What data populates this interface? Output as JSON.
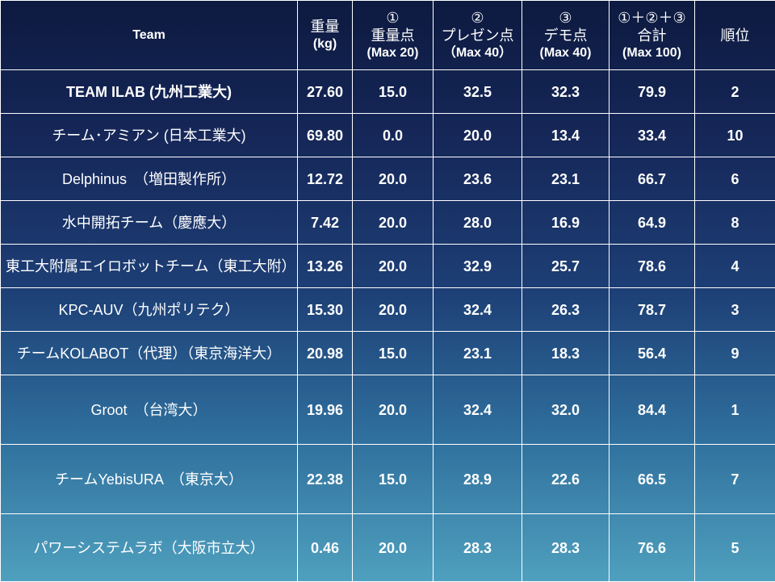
{
  "header": {
    "team": "Team",
    "weight": {
      "line1": "重量",
      "line2": "(kg)"
    },
    "score1": {
      "line1": "①",
      "line2": "重量点",
      "line3": "(Max 20)"
    },
    "score2": {
      "line1": "②",
      "line2": "プレゼン点",
      "line3": "（Max 40）"
    },
    "score3": {
      "line1": "③",
      "line2": "デモ点",
      "line3": "(Max 40)"
    },
    "total": {
      "line1": "①＋②＋③",
      "line2": "合計",
      "line3": "(Max 100)"
    },
    "rank": "順位"
  },
  "rows": [
    {
      "team": "TEAM ILAB (九州工業大)",
      "weight": "27.60",
      "s1": "15.0",
      "s2": "32.5",
      "s3": "32.3",
      "total": "79.9",
      "rank": "2"
    },
    {
      "team": "チーム･アミアン (日本工業大)",
      "weight": "69.80",
      "s1": "0.0",
      "s2": "20.0",
      "s3": "13.4",
      "total": "33.4",
      "rank": "10"
    },
    {
      "team": "Delphinus　（増田製作所）",
      "weight": "12.72",
      "s1": "20.0",
      "s2": "23.6",
      "s3": "23.1",
      "total": "66.7",
      "rank": "6"
    },
    {
      "team": "水中開拓チーム（慶應大）",
      "weight": "7.42",
      "s1": "20.0",
      "s2": "28.0",
      "s3": "16.9",
      "total": "64.9",
      "rank": "8"
    },
    {
      "team": "東工大附属エイロボットチーム（東工大附）",
      "weight": "13.26",
      "s1": "20.0",
      "s2": "32.9",
      "s3": "25.7",
      "total": "78.6",
      "rank": "4"
    },
    {
      "team": "KPC-AUV（九州ポリテク）",
      "weight": "15.30",
      "s1": "20.0",
      "s2": "32.4",
      "s3": "26.3",
      "total": "78.7",
      "rank": "3"
    },
    {
      "team": "チームKOLABOT（代理）（東京海洋大）",
      "weight": "20.98",
      "s1": "15.0",
      "s2": "23.1",
      "s3": "18.3",
      "total": "56.4",
      "rank": "9"
    },
    {
      "team": "Groot　（台湾大）",
      "weight": "19.96",
      "s1": "20.0",
      "s2": "32.4",
      "s3": "32.0",
      "total": "84.4",
      "rank": "1"
    },
    {
      "team": "チームYebisURA　（東京大）",
      "weight": "22.38",
      "s1": "15.0",
      "s2": "28.9",
      "s3": "22.6",
      "total": "66.5",
      "rank": "7"
    },
    {
      "team": "パワーシステムラボ（大阪市立大）",
      "weight": "0.46",
      "s1": "20.0",
      "s2": "28.3",
      "s3": "28.3",
      "total": "76.6",
      "rank": "5"
    }
  ]
}
